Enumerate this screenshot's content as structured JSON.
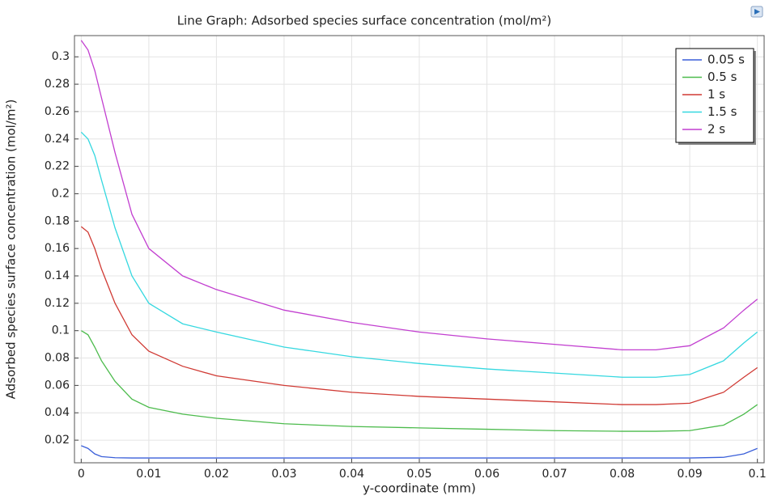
{
  "chart_data": {
    "type": "line",
    "title": "Line Graph: Adsorbed species surface concentration (mol/m²)",
    "xlabel": "y-coordinate (mm)",
    "ylabel": "Adsorbed species surface concentration (mol/m²)",
    "x": [
      0,
      0.001,
      0.002,
      0.003,
      0.005,
      0.0075,
      0.01,
      0.015,
      0.02,
      0.03,
      0.04,
      0.05,
      0.06,
      0.07,
      0.08,
      0.085,
      0.09,
      0.095,
      0.098,
      0.1
    ],
    "series": [
      {
        "name": "0.05 s",
        "color": "#3a5fd9",
        "values": [
          0.016,
          0.014,
          0.01,
          0.008,
          0.0072,
          0.007,
          0.007,
          0.007,
          0.007,
          0.007,
          0.007,
          0.007,
          0.007,
          0.007,
          0.007,
          0.007,
          0.007,
          0.0075,
          0.01,
          0.014
        ]
      },
      {
        "name": "0.5 s",
        "color": "#4cbb4c",
        "values": [
          0.1,
          0.097,
          0.088,
          0.078,
          0.063,
          0.05,
          0.044,
          0.039,
          0.036,
          0.032,
          0.03,
          0.029,
          0.028,
          0.027,
          0.0265,
          0.0265,
          0.027,
          0.031,
          0.039,
          0.046
        ]
      },
      {
        "name": "1 s",
        "color": "#d03a34",
        "values": [
          0.176,
          0.172,
          0.16,
          0.145,
          0.12,
          0.097,
          0.085,
          0.074,
          0.067,
          0.06,
          0.055,
          0.052,
          0.05,
          0.048,
          0.046,
          0.046,
          0.047,
          0.055,
          0.066,
          0.073
        ]
      },
      {
        "name": "1.5 s",
        "color": "#35d8e0",
        "values": [
          0.245,
          0.24,
          0.228,
          0.21,
          0.175,
          0.14,
          0.12,
          0.105,
          0.099,
          0.088,
          0.081,
          0.076,
          0.072,
          0.069,
          0.066,
          0.066,
          0.068,
          0.078,
          0.091,
          0.099
        ]
      },
      {
        "name": "2 s",
        "color": "#c23fd0",
        "values": [
          0.312,
          0.305,
          0.29,
          0.27,
          0.23,
          0.185,
          0.16,
          0.14,
          0.13,
          0.115,
          0.106,
          0.099,
          0.094,
          0.09,
          0.086,
          0.086,
          0.089,
          0.102,
          0.115,
          0.123
        ]
      }
    ],
    "xlim": [
      -0.001,
      0.101
    ],
    "ylim": [
      0.0035,
      0.3155
    ],
    "xticks": [
      0,
      0.01,
      0.02,
      0.03,
      0.04,
      0.05,
      0.06,
      0.07,
      0.08,
      0.09,
      0.1
    ],
    "yticks": [
      0.02,
      0.04,
      0.06,
      0.08,
      0.1,
      0.12,
      0.14,
      0.16,
      0.18,
      0.2,
      0.22,
      0.24,
      0.26,
      0.28,
      0.3
    ],
    "grid": true,
    "legend": "top-right"
  }
}
